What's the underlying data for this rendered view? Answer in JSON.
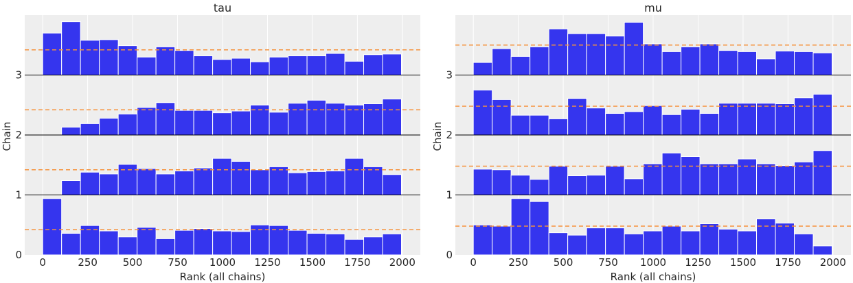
{
  "chart_data": [
    {
      "type": "bar",
      "title": "tau",
      "xlabel": "Rank (all chains)",
      "ylabel": "Chain",
      "xlim": [
        -100,
        2100
      ],
      "ylim": [
        0,
        4
      ],
      "x_ticks": [
        0,
        250,
        500,
        750,
        1000,
        1250,
        1500,
        1750,
        2000
      ],
      "y_ticks": [
        0,
        1,
        2,
        3
      ],
      "bin_edges": [
        0,
        105,
        210,
        315,
        420,
        525,
        630,
        735,
        840,
        945,
        1050,
        1155,
        1260,
        1365,
        1470,
        1575,
        1680,
        1785,
        1890,
        1995
      ],
      "grid": true,
      "bar_color": "#3535ee",
      "reference_line_color": "#f5913a",
      "series": [
        {
          "chain": 0,
          "values": [
            0.94,
            0.36,
            0.49,
            0.4,
            0.3,
            0.46,
            0.27,
            0.41,
            0.44,
            0.4,
            0.39,
            0.5,
            0.49,
            0.41,
            0.36,
            0.35,
            0.26,
            0.3,
            0.35
          ],
          "reference": 0.42
        },
        {
          "chain": 1,
          "values": [
            0.0,
            0.24,
            0.38,
            0.35,
            0.51,
            0.44,
            0.35,
            0.4,
            0.45,
            0.61,
            0.56,
            0.42,
            0.47,
            0.37,
            0.39,
            0.4,
            0.61,
            0.47,
            0.34
          ],
          "reference": 0.42
        },
        {
          "chain": 2,
          "values": [
            0.0,
            0.13,
            0.19,
            0.28,
            0.35,
            0.46,
            0.54,
            0.41,
            0.41,
            0.37,
            0.4,
            0.5,
            0.38,
            0.53,
            0.58,
            0.53,
            0.5,
            0.52,
            0.6
          ],
          "reference": 0.42
        },
        {
          "chain": 3,
          "values": [
            0.7,
            0.89,
            0.58,
            0.59,
            0.49,
            0.3,
            0.47,
            0.41,
            0.32,
            0.26,
            0.28,
            0.22,
            0.3,
            0.32,
            0.32,
            0.36,
            0.23,
            0.34,
            0.35
          ],
          "reference": 0.42
        }
      ]
    },
    {
      "type": "bar",
      "title": "mu",
      "xlabel": "Rank (all chains)",
      "ylabel": "Chain",
      "xlim": [
        -100,
        2100
      ],
      "ylim": [
        0,
        4
      ],
      "x_ticks": [
        0,
        250,
        500,
        750,
        1000,
        1250,
        1500,
        1750,
        2000
      ],
      "y_ticks": [
        0,
        1,
        2,
        3
      ],
      "bin_edges": [
        0,
        105,
        210,
        315,
        420,
        525,
        630,
        735,
        840,
        945,
        1050,
        1155,
        1260,
        1365,
        1470,
        1575,
        1680,
        1785,
        1890,
        1995
      ],
      "grid": true,
      "bar_color": "#3535ee",
      "reference_line_color": "#f5913a",
      "series": [
        {
          "chain": 0,
          "values": [
            0.5,
            0.48,
            0.94,
            0.89,
            0.37,
            0.33,
            0.45,
            0.45,
            0.35,
            0.4,
            0.48,
            0.4,
            0.52,
            0.43,
            0.4,
            0.6,
            0.53,
            0.35,
            0.15
          ],
          "reference": 0.48
        },
        {
          "chain": 1,
          "values": [
            0.43,
            0.42,
            0.33,
            0.26,
            0.48,
            0.32,
            0.33,
            0.48,
            0.27,
            0.52,
            0.7,
            0.64,
            0.52,
            0.52,
            0.6,
            0.52,
            0.49,
            0.55,
            0.74
          ],
          "reference": 0.48
        },
        {
          "chain": 2,
          "values": [
            0.75,
            0.59,
            0.33,
            0.33,
            0.27,
            0.61,
            0.45,
            0.36,
            0.39,
            0.49,
            0.34,
            0.43,
            0.36,
            0.53,
            0.53,
            0.53,
            0.52,
            0.62,
            0.68
          ],
          "reference": 0.48
        },
        {
          "chain": 3,
          "values": [
            0.21,
            0.44,
            0.31,
            0.47,
            0.77,
            0.69,
            0.69,
            0.65,
            0.88,
            0.52,
            0.39,
            0.47,
            0.52,
            0.41,
            0.39,
            0.27,
            0.4,
            0.39,
            0.37
          ],
          "reference": 0.5
        }
      ]
    }
  ]
}
